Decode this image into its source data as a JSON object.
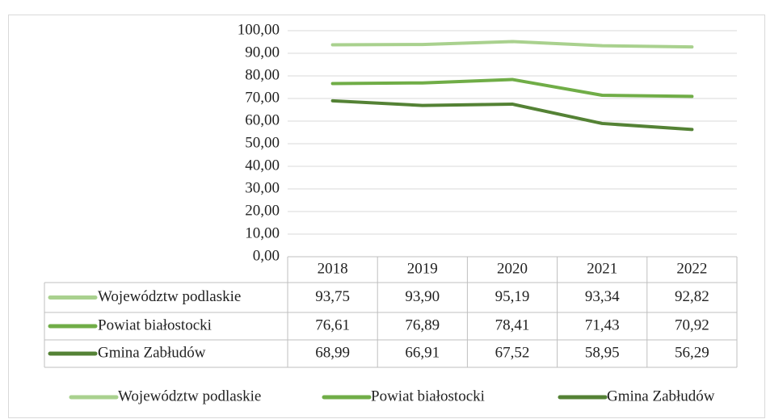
{
  "chart_data": {
    "type": "line",
    "categories": [
      "2018",
      "2019",
      "2020",
      "2021",
      "2022"
    ],
    "series": [
      {
        "name": "Województw podlaskie",
        "color": "#a9d18e",
        "values": [
          93.75,
          93.9,
          95.19,
          93.34,
          92.82
        ],
        "value_labels": [
          "93,75",
          "93,90",
          "95,19",
          "93,34",
          "92,82"
        ]
      },
      {
        "name": "Powiat białostocki",
        "color": "#70ad47",
        "values": [
          76.61,
          76.89,
          78.41,
          71.43,
          70.92
        ],
        "value_labels": [
          "76,61",
          "76,89",
          "78,41",
          "71,43",
          "70,92"
        ]
      },
      {
        "name": "Gmina Zabłudów",
        "color": "#548235",
        "values": [
          68.99,
          66.91,
          67.52,
          58.95,
          56.29
        ],
        "value_labels": [
          "68,99",
          "66,91",
          "67,52",
          "58,95",
          "56,29"
        ]
      }
    ],
    "ylim": [
      0,
      100
    ],
    "yticks": [
      {
        "value": 0,
        "label": "0,00"
      },
      {
        "value": 10,
        "label": "10,00"
      },
      {
        "value": 20,
        "label": "20,00"
      },
      {
        "value": 30,
        "label": "30,00"
      },
      {
        "value": 40,
        "label": "40,00"
      },
      {
        "value": 50,
        "label": "50,00"
      },
      {
        "value": 60,
        "label": "60,00"
      },
      {
        "value": 70,
        "label": "70,00"
      },
      {
        "value": 80,
        "label": "80,00"
      },
      {
        "value": 90,
        "label": "90,00"
      },
      {
        "value": 100,
        "label": "100,00"
      }
    ],
    "grid": true,
    "legend": "bottom",
    "data_table": true
  }
}
